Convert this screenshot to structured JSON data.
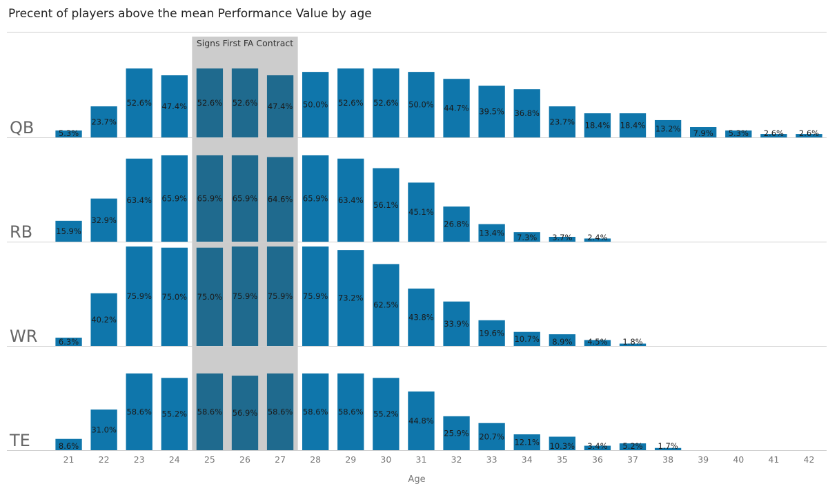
{
  "chart_data": {
    "type": "bar",
    "title": "Precent of players above the mean Performance Value by age",
    "xlabel": "Age",
    "categories": [
      "21",
      "22",
      "23",
      "24",
      "25",
      "26",
      "27",
      "28",
      "29",
      "30",
      "31",
      "32",
      "33",
      "34",
      "35",
      "36",
      "37",
      "38",
      "39",
      "40",
      "41",
      "42"
    ],
    "value_format": "percent",
    "highlight": {
      "label": "Signs First FA Contract",
      "from": "25",
      "to": "27"
    },
    "colors": {
      "bar": "#0f76ab",
      "bar_highlight": "#1f6a8e",
      "band": "#cccccc",
      "divider": "#cfcfcf"
    },
    "grid": false,
    "series": [
      {
        "name": "QB",
        "values": [
          5.3,
          23.7,
          52.6,
          47.4,
          52.6,
          52.6,
          47.4,
          50.0,
          52.6,
          52.6,
          50.0,
          44.7,
          39.5,
          36.8,
          23.7,
          18.4,
          18.4,
          13.2,
          7.9,
          5.3,
          2.6,
          2.6
        ]
      },
      {
        "name": "RB",
        "values": [
          15.9,
          32.9,
          63.4,
          65.9,
          65.9,
          65.9,
          64.6,
          65.9,
          63.4,
          56.1,
          45.1,
          26.8,
          13.4,
          7.3,
          3.7,
          2.4,
          null,
          null,
          null,
          null,
          null,
          null
        ]
      },
      {
        "name": "WR",
        "values": [
          6.3,
          40.2,
          75.9,
          75.0,
          75.0,
          75.9,
          75.9,
          75.9,
          73.2,
          62.5,
          43.8,
          33.9,
          19.6,
          10.7,
          8.9,
          4.5,
          1.8,
          null,
          null,
          null,
          null,
          null
        ]
      },
      {
        "name": "TE",
        "values": [
          8.6,
          31.0,
          58.6,
          55.2,
          58.6,
          56.9,
          58.6,
          58.6,
          58.6,
          55.2,
          44.8,
          25.9,
          20.7,
          12.1,
          10.3,
          3.4,
          5.2,
          1.7,
          null,
          null,
          null,
          null
        ]
      }
    ]
  }
}
